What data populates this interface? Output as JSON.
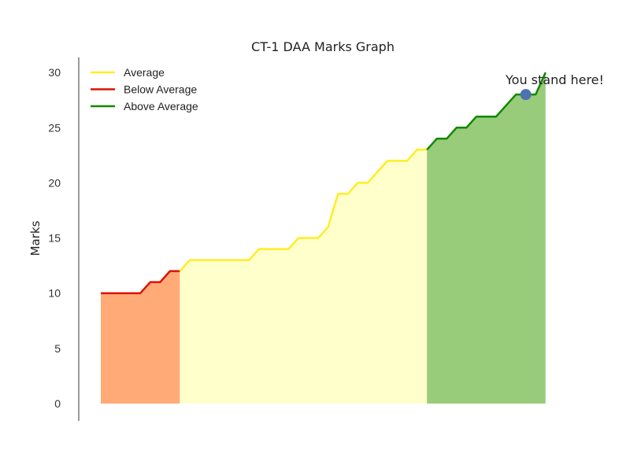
{
  "chart_data": {
    "type": "area",
    "title": "CT-1 DAA Marks Graph",
    "xlabel": "",
    "ylabel": "Marks",
    "ylim": [
      0,
      31.5
    ],
    "yticks": [
      0,
      5,
      10,
      15,
      20,
      25,
      30
    ],
    "grid": false,
    "legend_position": "top-left",
    "series": [
      {
        "name": "Below Average",
        "color": "#dd1100",
        "fill": "#ffaa77",
        "x": [
          0,
          1,
          2,
          3,
          4,
          5,
          6,
          7,
          8
        ],
        "values": [
          10,
          10,
          10,
          10,
          10,
          11,
          11,
          12,
          12
        ]
      },
      {
        "name": "Average",
        "color": "#ffee22",
        "fill": "#ffffcc",
        "x": [
          8,
          9,
          10,
          11,
          12,
          13,
          14,
          15,
          16,
          17,
          18,
          19,
          20,
          21,
          22,
          23,
          24,
          25,
          26,
          27,
          28,
          29,
          30,
          31,
          32,
          33
        ],
        "values": [
          12,
          13,
          13,
          13,
          13,
          13,
          13,
          13,
          14,
          14,
          14,
          14,
          15,
          15,
          15,
          16,
          19,
          19,
          20,
          20,
          21,
          22,
          22,
          22,
          23,
          23
        ]
      },
      {
        "name": "Above Average",
        "color": "#118800",
        "fill": "#99cc7a",
        "x": [
          33,
          34,
          35,
          36,
          37,
          38,
          39,
          40,
          41,
          42,
          43,
          44,
          45
        ],
        "values": [
          23,
          24,
          24,
          25,
          25,
          26,
          26,
          26,
          27,
          28,
          28,
          28,
          30
        ]
      }
    ],
    "legend_order": [
      "Average",
      "Below Average",
      "Above Average"
    ],
    "highlight_point": {
      "x": 43,
      "y": 28,
      "color": "#4c72b0"
    },
    "annotation": {
      "text": "You stand here!"
    }
  }
}
